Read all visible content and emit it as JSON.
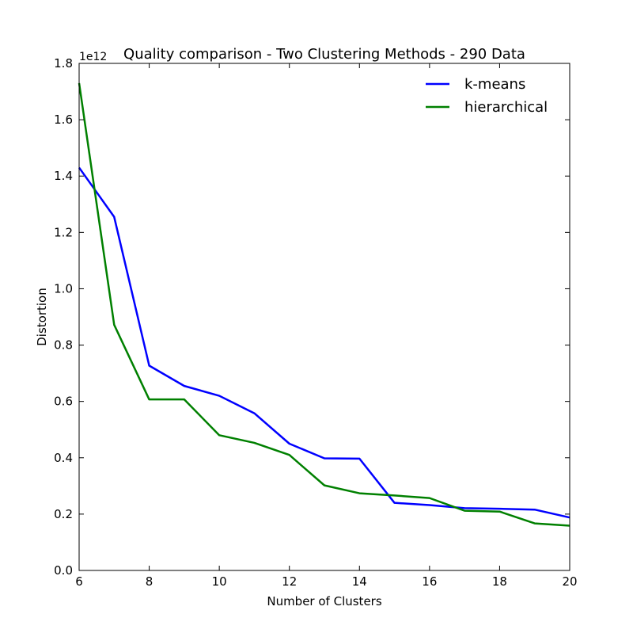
{
  "chart_data": {
    "type": "line",
    "title": "Quality comparison - Two Clustering Methods - 290 Data",
    "xlabel": "Number of Clusters",
    "ylabel": "Distortion",
    "offset_label": "1e12",
    "xlim": [
      6,
      20
    ],
    "ylim": [
      0.0,
      1.8
    ],
    "xticks": [
      "6",
      "8",
      "10",
      "12",
      "14",
      "16",
      "18",
      "20"
    ],
    "yticks": [
      "0.0",
      "0.2",
      "0.4",
      "0.6",
      "0.8",
      "1.0",
      "1.2",
      "1.4",
      "1.6",
      "1.8"
    ],
    "grid": false,
    "legend_position": "top-right",
    "x": [
      6,
      7,
      8,
      9,
      10,
      11,
      12,
      13,
      14,
      15,
      16,
      17,
      18,
      19,
      20
    ],
    "series": [
      {
        "name": "k-means",
        "color": "#0000ff",
        "values": [
          1.43,
          1.255,
          0.727,
          0.655,
          0.62,
          0.558,
          0.45,
          0.398,
          0.397,
          0.24,
          0.232,
          0.221,
          0.219,
          0.216,
          0.188
        ]
      },
      {
        "name": "hierarchical",
        "color": "#008000",
        "values": [
          1.73,
          0.872,
          0.607,
          0.607,
          0.48,
          0.453,
          0.41,
          0.302,
          0.274,
          0.266,
          0.257,
          0.212,
          0.209,
          0.167,
          0.159
        ]
      }
    ]
  }
}
